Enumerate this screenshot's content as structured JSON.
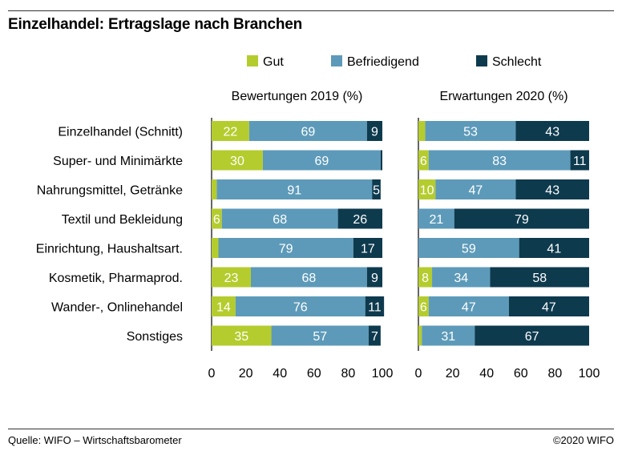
{
  "header": {
    "title": "Einzelhandel: Ertragslage nach Branchen"
  },
  "footer": {
    "source": "Quelle: WIFO – Wirtschaftsbarometer",
    "copyright": "©2020 WIFO"
  },
  "colors": {
    "Gut": "#b5cc2e",
    "Befriedigend": "#5d9ab9",
    "Schlecht": "#0e3a4e",
    "label_on_light": "#ffffff"
  },
  "chart_data": {
    "type": "bar",
    "orientation": "horizontal-stacked",
    "legend": [
      "Gut",
      "Befriedigend",
      "Schlecht"
    ],
    "legend_placement": "top",
    "categories": [
      "Einzelhandel (Schnitt)",
      "Super- und Minimärkte",
      "Nahrungsmittel, Getränke",
      "Textil und Bekleidung",
      "Einrichtung, Haushaltsart.",
      "Kosmetik, Pharmaprod.",
      "Wander-, Onlinehandel",
      "Sonstiges"
    ],
    "xlim": [
      0,
      100
    ],
    "xticks": [
      "0",
      "20",
      "40",
      "60",
      "80",
      "100"
    ],
    "panels": [
      {
        "title": "Bewertungen 2019 (%)",
        "series": [
          {
            "name": "Gut",
            "values": [
              22,
              30,
              3,
              6,
              4,
              23,
              14,
              35
            ]
          },
          {
            "name": "Befriedigend",
            "values": [
              69,
              69,
              91,
              68,
              79,
              68,
              76,
              57
            ]
          },
          {
            "name": "Schlecht",
            "values": [
              9,
              1,
              5,
              26,
              17,
              9,
              11,
              7
            ]
          }
        ],
        "labels": [
          [
            "22",
            "69",
            "9"
          ],
          [
            "30",
            "69",
            ""
          ],
          [
            "",
            "91",
            "5"
          ],
          [
            "6",
            "68",
            "26"
          ],
          [
            "",
            "79",
            "17"
          ],
          [
            "23",
            "68",
            "9"
          ],
          [
            "14",
            "76",
            "11"
          ],
          [
            "35",
            "57",
            "7"
          ]
        ]
      },
      {
        "title": "Erwartungen 2020 (%)",
        "series": [
          {
            "name": "Gut",
            "values": [
              4,
              6,
              10,
              0,
              0,
              8,
              6,
              2
            ]
          },
          {
            "name": "Befriedigend",
            "values": [
              53,
              83,
              47,
              21,
              59,
              34,
              47,
              31
            ]
          },
          {
            "name": "Schlecht",
            "values": [
              43,
              11,
              43,
              79,
              41,
              58,
              47,
              67
            ]
          }
        ],
        "labels": [
          [
            "",
            "53",
            "43"
          ],
          [
            "6",
            "83",
            "11"
          ],
          [
            "10",
            "47",
            "43"
          ],
          [
            "",
            "21",
            "79"
          ],
          [
            "",
            "59",
            "41"
          ],
          [
            "8",
            "34",
            "58"
          ],
          [
            "6",
            "47",
            "47"
          ],
          [
            "",
            "31",
            "67"
          ]
        ]
      }
    ]
  }
}
